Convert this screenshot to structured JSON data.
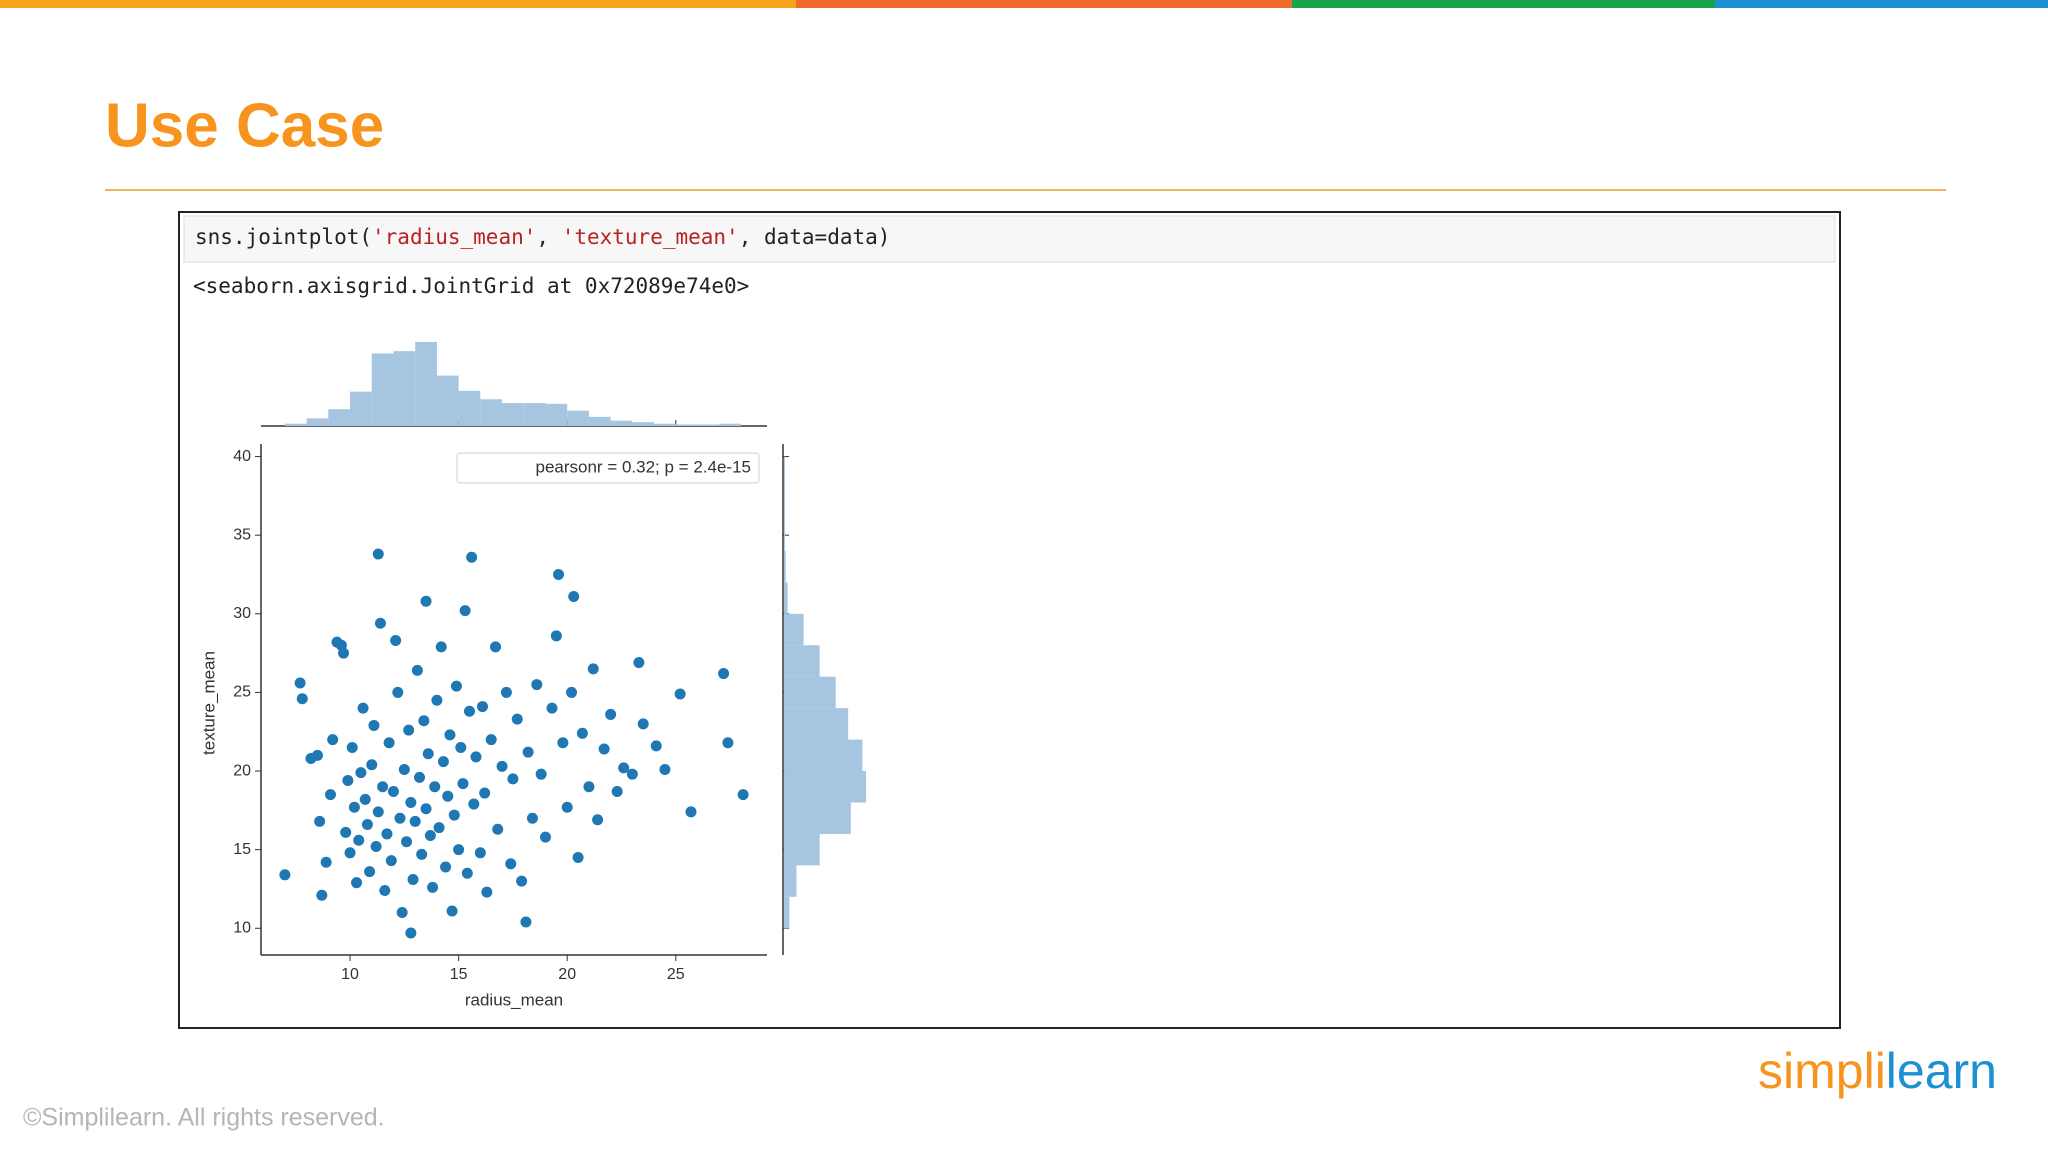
{
  "header": {
    "title": "Use Case"
  },
  "cell": {
    "code": [
      "sns.jointplot(",
      "'radius_mean'",
      ", ",
      "'texture_mean'",
      ", data=data)"
    ],
    "output": "<seaborn.axisgrid.JointGrid at 0x72089e74e0>"
  },
  "chart_data": {
    "type": "scatter",
    "xlabel": "radius_mean",
    "ylabel": "texture_mean",
    "annotation": "pearsonr = 0.32; p = 2.4e-15",
    "color": "#1f77b4",
    "xlim": [
      5.9,
      29.2
    ],
    "ylim": [
      8.3,
      40.8
    ],
    "xticks": [
      10,
      15,
      20,
      25
    ],
    "yticks": [
      10,
      15,
      20,
      25,
      30,
      35,
      40
    ],
    "x": [
      7.0,
      7.7,
      7.8,
      8.2,
      8.5,
      8.6,
      8.7,
      8.9,
      9.1,
      9.2,
      9.4,
      9.6,
      9.7,
      9.8,
      9.9,
      10.0,
      10.1,
      10.2,
      10.3,
      10.4,
      10.5,
      10.6,
      10.7,
      10.8,
      10.9,
      11.0,
      11.1,
      11.2,
      11.3,
      11.3,
      11.4,
      11.5,
      11.6,
      11.7,
      11.8,
      11.9,
      12.0,
      12.1,
      12.2,
      12.3,
      12.4,
      12.5,
      12.6,
      12.7,
      12.8,
      12.8,
      12.9,
      13.0,
      13.1,
      13.2,
      13.3,
      13.4,
      13.5,
      13.5,
      13.6,
      13.7,
      13.8,
      13.9,
      14.0,
      14.1,
      14.2,
      14.3,
      14.4,
      14.5,
      14.6,
      14.7,
      14.8,
      14.9,
      15.0,
      15.1,
      15.2,
      15.3,
      15.4,
      15.5,
      15.6,
      15.7,
      15.8,
      16.0,
      16.1,
      16.2,
      16.3,
      16.5,
      16.7,
      16.8,
      17.0,
      17.2,
      17.4,
      17.5,
      17.7,
      17.9,
      18.1,
      18.2,
      18.4,
      18.6,
      18.8,
      19.0,
      19.3,
      19.5,
      19.6,
      19.8,
      20.0,
      20.2,
      20.3,
      20.5,
      20.7,
      21.0,
      21.2,
      21.4,
      21.7,
      22.0,
      22.3,
      22.6,
      23.0,
      23.3,
      23.5,
      24.1,
      24.5,
      25.2,
      25.7,
      27.2,
      27.4,
      28.1
    ],
    "y": [
      13.4,
      25.6,
      24.6,
      20.8,
      21.0,
      16.8,
      12.1,
      14.2,
      18.5,
      22.0,
      28.2,
      28.0,
      27.5,
      16.1,
      19.4,
      14.8,
      21.5,
      17.7,
      12.9,
      15.6,
      19.9,
      24.0,
      18.2,
      16.6,
      13.6,
      20.4,
      22.9,
      15.2,
      33.8,
      17.4,
      29.4,
      19.0,
      12.4,
      16.0,
      21.8,
      14.3,
      18.7,
      28.3,
      25.0,
      17.0,
      11.0,
      20.1,
      15.5,
      22.6,
      9.7,
      18.0,
      13.1,
      16.8,
      26.4,
      19.6,
      14.7,
      23.2,
      30.8,
      17.6,
      21.1,
      15.9,
      12.6,
      19.0,
      24.5,
      16.4,
      27.9,
      20.6,
      13.9,
      18.4,
      22.3,
      11.1,
      17.2,
      25.4,
      15.0,
      21.5,
      19.2,
      30.2,
      13.5,
      23.8,
      33.6,
      17.9,
      20.9,
      14.8,
      24.1,
      18.6,
      12.3,
      22.0,
      27.9,
      16.3,
      20.3,
      25.0,
      14.1,
      19.5,
      23.3,
      13.0,
      10.4,
      21.2,
      17.0,
      25.5,
      19.8,
      15.8,
      24.0,
      28.6,
      32.5,
      21.8,
      17.7,
      25.0,
      31.1,
      14.5,
      22.4,
      19.0,
      26.5,
      16.9,
      21.4,
      23.6,
      18.7,
      20.2,
      19.8,
      26.9,
      23.0,
      21.6,
      20.1,
      24.9,
      17.4,
      26.2,
      21.8,
      18.5
    ],
    "marginal_x": {
      "color": "#a6c5e0",
      "bins": [
        7,
        8,
        9,
        10,
        11,
        12,
        13,
        14,
        15,
        16,
        17,
        18,
        19,
        20,
        21,
        22,
        23,
        24,
        25,
        26,
        27,
        28
      ],
      "counts": [
        3,
        10,
        22,
        45,
        95,
        98,
        110,
        66,
        46,
        35,
        30,
        30,
        29,
        20,
        12,
        7,
        5,
        3,
        2,
        2,
        3
      ]
    },
    "marginal_y": {
      "color": "#a6c5e0",
      "bins": [
        10,
        12,
        14,
        16,
        18,
        20,
        22,
        24,
        26,
        28,
        30,
        32,
        34,
        36,
        38,
        40
      ],
      "counts": [
        6,
        14,
        40,
        75,
        92,
        88,
        72,
        58,
        40,
        22,
        4,
        2,
        1,
        1,
        1
      ]
    }
  },
  "footer": {
    "copyright": "©Simplilearn. All rights reserved.",
    "logo": [
      "simpl",
      "i",
      "learn"
    ]
  }
}
